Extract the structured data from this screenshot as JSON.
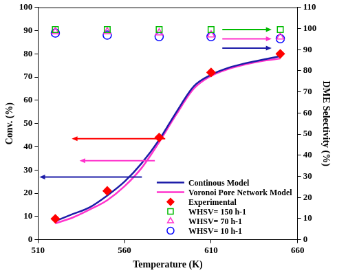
{
  "chart_data": {
    "type": "line",
    "x_label": "Temperature (K)",
    "y_label": "Conv. (%)",
    "y2_label": "DME Selectivity (%)",
    "xlim": [
      510,
      660
    ],
    "xticks": [
      510,
      560,
      610,
      660
    ],
    "ylim": [
      0,
      100
    ],
    "yticks": [
      0,
      10,
      20,
      30,
      40,
      50,
      60,
      70,
      80,
      90,
      100
    ],
    "y2lim": [
      0,
      110
    ],
    "y2ticks": [
      0,
      10,
      20,
      30,
      40,
      50,
      60,
      70,
      80,
      90,
      100,
      110
    ],
    "grid": false,
    "legend": "lower right",
    "series": [
      {
        "name": "Continous Model",
        "type": "line",
        "color": "#1c1ca8",
        "line_style": "solid",
        "x": [
          520,
          530,
          540,
          550,
          560,
          570,
          580,
          590,
          600,
          610,
          620,
          630,
          640,
          650
        ],
        "values": [
          8,
          11,
          14,
          19,
          25,
          33,
          43,
          55,
          66,
          71,
          74,
          76,
          77.5,
          79
        ]
      },
      {
        "name": "Voronoi Pore Network Model",
        "type": "line",
        "color": "#ff33cc",
        "line_style": "solid",
        "x": [
          520,
          530,
          540,
          550,
          560,
          570,
          580,
          590,
          600,
          610,
          620,
          630,
          640,
          650
        ],
        "values": [
          7,
          9.5,
          13,
          17,
          23,
          31,
          42,
          54,
          65,
          70.5,
          73.5,
          75.5,
          77,
          78
        ]
      },
      {
        "name": "Experimental",
        "type": "scatter",
        "color": "#ff0000",
        "marker": "diamond",
        "x": [
          520,
          550,
          580,
          610,
          650
        ],
        "values": [
          9,
          21,
          44,
          72,
          80
        ]
      },
      {
        "name": "WHSV= 150 h-1",
        "type": "scatter",
        "color": "#00bb00",
        "marker": "open_square",
        "axis": "y2",
        "x": [
          520,
          550,
          580,
          610,
          650
        ],
        "values": [
          99.5,
          99.5,
          99.5,
          99.5,
          99.5
        ]
      },
      {
        "name": "WHSV= 70 h-1",
        "type": "scatter",
        "color": "#ff33cc",
        "marker": "open_triangle",
        "axis": "y2",
        "x": [
          520,
          550,
          580,
          610,
          650
        ],
        "values": [
          98.5,
          98.5,
          98,
          97,
          96
        ]
      },
      {
        "name": "WHSV= 10 h-1",
        "type": "scatter",
        "color": "#0000ff",
        "marker": "open_circle",
        "axis": "y2",
        "x": [
          520,
          550,
          580,
          610,
          650
        ],
        "values": [
          97.9,
          96.9,
          96.2,
          96.2,
          95.2
        ]
      }
    ]
  }
}
